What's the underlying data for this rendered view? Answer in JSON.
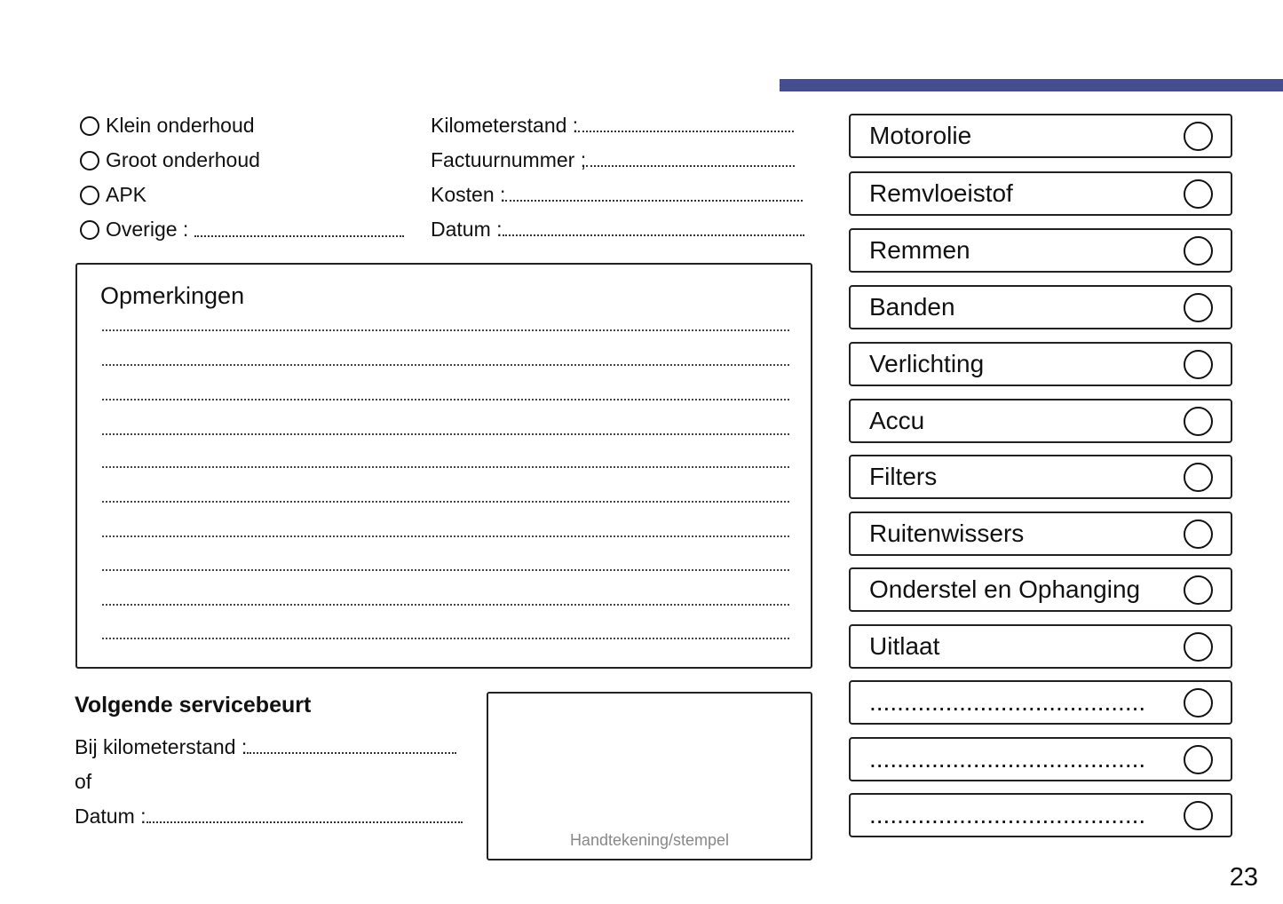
{
  "header": {
    "accent_color": "#454d8e"
  },
  "service_types": [
    {
      "label": "Klein onderhoud"
    },
    {
      "label": "Groot onderhoud"
    },
    {
      "label": "APK"
    },
    {
      "label": "Overige :"
    }
  ],
  "fields": [
    {
      "label": "Kilometerstand :"
    },
    {
      "label": "Factuurnummer ;"
    },
    {
      "label": "Kosten :"
    },
    {
      "label": "Datum :"
    }
  ],
  "remarks": {
    "title": "Opmerkingen"
  },
  "next_service": {
    "title": "Volgende servicebeurt",
    "km_label": "Bij kilometerstand :",
    "or_label": "of",
    "date_label": "Datum :"
  },
  "stamp": {
    "label": "Handtekening/stempel"
  },
  "checklist": [
    {
      "label": "Motorolie"
    },
    {
      "label": "Remvloeistof"
    },
    {
      "label": "Remmen"
    },
    {
      "label": "Banden"
    },
    {
      "label": "Verlichting"
    },
    {
      "label": "Accu"
    },
    {
      "label": "Filters"
    },
    {
      "label": "Ruitenwissers"
    },
    {
      "label": "Onderstel en Ophanging"
    },
    {
      "label": "Uitlaat"
    },
    {
      "label": "........................................"
    },
    {
      "label": "........................................"
    },
    {
      "label": "........................................"
    }
  ],
  "page_number": "23"
}
